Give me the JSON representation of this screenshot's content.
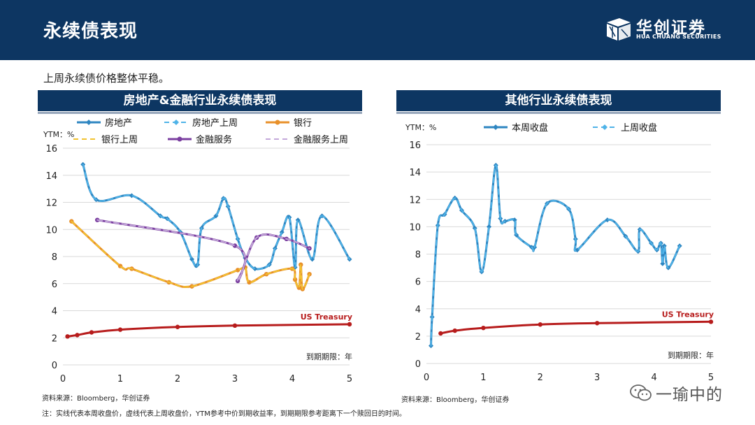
{
  "header": {
    "title": "永续债表现"
  },
  "logo": {
    "cn": "华创证券",
    "en": "HUA CHUANG SECURITIES"
  },
  "subtitle": "上周永续债价格整体平稳。",
  "source_left": "资料来源：Bloomberg，华创证券",
  "source_right": "资料来源：Bloomberg，华创证券",
  "note": "注：实线代表本周收盘价，虚线代表上周收盘价，YTM参考中价到期收益率，到期期限参考距离下一个赎回日的时间。",
  "watermark": "一瑜中的",
  "colors": {
    "navy": "#0d3662",
    "realestate": "#2e86c1",
    "bank": "#e8902a",
    "bank_prev": "#f2c230",
    "fin": "#7b3fa0",
    "fin_prev": "#c3a7d9",
    "treasury": "#b71c1c"
  },
  "chart_data": [
    {
      "type": "line",
      "title": "房地产&金融行业永续债表现",
      "ylabel": "YTM：%",
      "xlabel": "到期期限：年",
      "xlim": [
        0,
        5
      ],
      "ylim": [
        0,
        16
      ],
      "xticks": [
        "0",
        "1",
        "2",
        "3",
        "4",
        "5"
      ],
      "yticks": [
        "0",
        "2",
        "4",
        "6",
        "8",
        "10",
        "12",
        "14",
        "16"
      ],
      "grid": "horizontal",
      "legend": "top",
      "series": [
        {
          "name": "房地产",
          "style": "solid",
          "color": "#2e86c1",
          "marker": "diamond",
          "x": [
            0.35,
            0.58,
            1.2,
            1.7,
            1.82,
            2.05,
            2.25,
            2.35,
            2.42,
            2.67,
            2.8,
            2.88,
            3.05,
            3.18,
            3.35,
            3.6,
            3.7,
            3.82,
            3.95,
            4.05,
            4.1,
            4.35,
            4.52,
            5.0
          ],
          "y": [
            14.8,
            12.2,
            12.5,
            11.0,
            10.8,
            9.8,
            7.8,
            7.4,
            10.1,
            11.0,
            12.3,
            11.7,
            9.3,
            7.9,
            7.1,
            7.4,
            8.6,
            9.8,
            10.9,
            7.2,
            10.7,
            7.8,
            11.0,
            7.8
          ]
        },
        {
          "name": "房地产上周",
          "style": "dashed",
          "color": "#4fb3e8",
          "marker": "diamond",
          "x": [
            0.35,
            0.58,
            1.2,
            1.7,
            1.82,
            2.05,
            2.25,
            2.35,
            2.42,
            2.67,
            2.8,
            2.88,
            3.05,
            3.18,
            3.35,
            3.6,
            3.7,
            3.82,
            3.95,
            4.05,
            4.1,
            4.35,
            4.52,
            5.0
          ],
          "y": [
            14.8,
            12.2,
            12.5,
            11.0,
            10.8,
            9.8,
            7.8,
            7.4,
            10.1,
            11.0,
            12.3,
            11.7,
            9.3,
            7.9,
            7.1,
            7.4,
            8.6,
            9.8,
            10.9,
            7.2,
            10.7,
            7.8,
            11.0,
            7.8
          ]
        },
        {
          "name": "银行",
          "style": "solid",
          "color": "#e8902a",
          "marker": "circle",
          "x": [
            0.15,
            1.0,
            1.2,
            1.85,
            2.25,
            3.05,
            3.18,
            3.25,
            3.55,
            4.0,
            4.05,
            4.12,
            4.15,
            4.18,
            4.3
          ],
          "y": [
            10.6,
            7.3,
            7.1,
            6.1,
            5.8,
            7.0,
            7.2,
            6.1,
            6.7,
            7.1,
            6.3,
            5.7,
            7.4,
            5.6,
            6.7
          ]
        },
        {
          "name": "银行上周",
          "style": "dashed",
          "color": "#f2c230",
          "marker": "none",
          "x": [
            0.15,
            1.0,
            1.2,
            1.85,
            2.25,
            3.05,
            3.18,
            3.25,
            3.55,
            4.0,
            4.05,
            4.12,
            4.15,
            4.18,
            4.3
          ],
          "y": [
            10.6,
            7.3,
            7.1,
            6.1,
            5.8,
            7.0,
            7.2,
            6.1,
            6.7,
            7.1,
            6.3,
            5.7,
            7.4,
            5.6,
            6.7
          ]
        },
        {
          "name": "金融服务",
          "style": "solid",
          "color": "#7b3fa0",
          "marker": "circle",
          "x": [
            0.6,
            3.0,
            3.05,
            3.38,
            3.9,
            4.3
          ],
          "y": [
            10.7,
            8.8,
            6.2,
            9.4,
            9.3,
            8.6
          ]
        },
        {
          "name": "金融服务上周",
          "style": "dashed",
          "color": "#c3a7d9",
          "marker": "none",
          "x": [
            0.6,
            3.0,
            3.05,
            3.38,
            3.9,
            4.3
          ],
          "y": [
            10.7,
            8.8,
            6.2,
            9.4,
            9.3,
            8.6
          ]
        },
        {
          "name": "US Treasury",
          "style": "solid",
          "color": "#b71c1c",
          "marker": "circle",
          "label": "US Treasury",
          "x": [
            0.08,
            0.25,
            0.5,
            1.0,
            2.0,
            3.0,
            5.0
          ],
          "y": [
            2.1,
            2.2,
            2.4,
            2.6,
            2.8,
            2.9,
            3.0
          ]
        }
      ]
    },
    {
      "type": "line",
      "title": "其他行业永续债表现",
      "ylabel": "YTM：%",
      "xlabel": "到期期限：年",
      "xlim": [
        0,
        5
      ],
      "ylim": [
        0,
        16
      ],
      "xticks": [
        "0",
        "1",
        "2",
        "3",
        "4",
        "5"
      ],
      "yticks": [
        "0",
        "2",
        "4",
        "6",
        "8",
        "10",
        "12",
        "14",
        "16"
      ],
      "grid": "horizontal",
      "legend": "top",
      "series": [
        {
          "name": "本周收盘",
          "style": "solid",
          "color": "#2e86c1",
          "marker": "diamond",
          "x": [
            0.08,
            0.1,
            0.2,
            0.32,
            0.5,
            0.62,
            0.85,
            0.97,
            1.1,
            1.22,
            1.3,
            1.38,
            1.55,
            1.58,
            1.85,
            1.9,
            2.12,
            2.5,
            2.62,
            2.65,
            3.18,
            3.5,
            3.72,
            3.75,
            3.95,
            4.05,
            4.12,
            4.15,
            4.18,
            4.25,
            4.45
          ],
          "y": [
            1.3,
            3.4,
            10.1,
            10.9,
            12.1,
            11.2,
            9.9,
            6.7,
            10.0,
            14.5,
            10.6,
            10.4,
            10.5,
            9.4,
            8.5,
            8.5,
            11.7,
            11.3,
            9.1,
            8.3,
            10.5,
            9.3,
            8.2,
            9.8,
            8.8,
            8.3,
            8.8,
            7.3,
            8.6,
            7.0,
            8.6
          ]
        },
        {
          "name": "上周收盘",
          "style": "dashed",
          "color": "#4fb3e8",
          "marker": "diamond",
          "x": [
            0.08,
            0.1,
            0.2,
            0.32,
            0.5,
            0.62,
            0.85,
            0.97,
            1.1,
            1.22,
            1.3,
            1.38,
            1.55,
            1.58,
            1.85,
            1.9,
            2.12,
            2.5,
            2.62,
            2.65,
            3.18,
            3.5,
            3.72,
            3.75,
            3.95,
            4.05,
            4.12,
            4.15,
            4.18,
            4.25,
            4.45
          ],
          "y": [
            1.3,
            3.4,
            10.1,
            10.9,
            12.1,
            11.2,
            9.9,
            6.7,
            10.0,
            14.5,
            10.6,
            10.4,
            10.5,
            9.4,
            8.5,
            8.5,
            11.7,
            11.3,
            9.1,
            8.3,
            10.5,
            9.3,
            8.2,
            9.8,
            8.8,
            8.3,
            8.8,
            7.3,
            8.6,
            7.0,
            8.6
          ]
        },
        {
          "name": "US Treasury",
          "style": "solid",
          "color": "#b71c1c",
          "marker": "circle",
          "label": "US Treasury",
          "x": [
            0.25,
            0.5,
            1.0,
            2.0,
            3.0,
            5.0
          ],
          "y": [
            2.2,
            2.4,
            2.6,
            2.85,
            2.95,
            3.05
          ]
        }
      ]
    }
  ]
}
